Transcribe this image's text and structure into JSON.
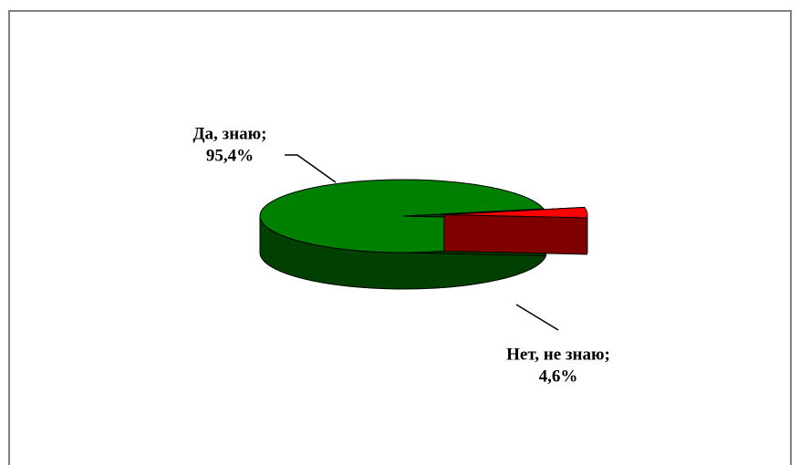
{
  "chart_data": {
    "type": "pie",
    "categories": [
      "Да, знаю;",
      "Нет, не знаю;"
    ],
    "values": [
      95.4,
      4.6
    ],
    "value_labels": [
      "95,4%",
      "4,6%"
    ],
    "colors": [
      "#008000",
      "#ff0000"
    ]
  }
}
